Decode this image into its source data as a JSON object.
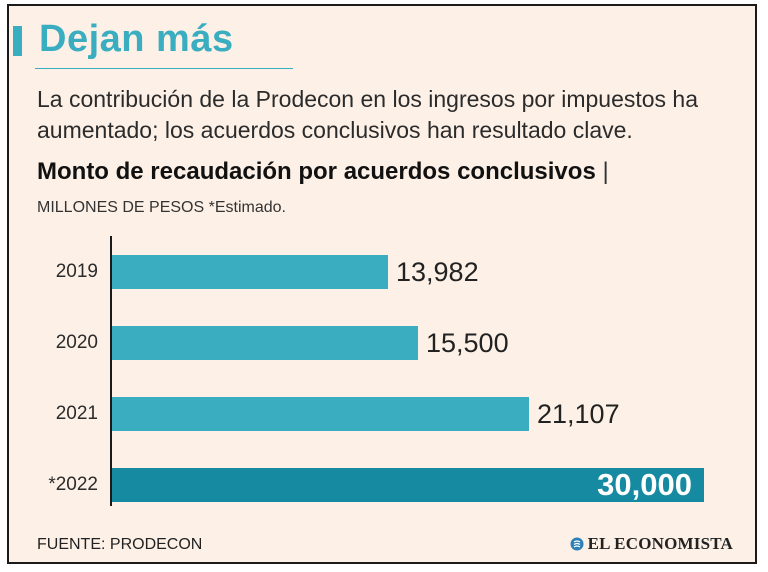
{
  "header": {
    "title": "Dejan más",
    "subtitle": "La contribución de la Prodecon en los ingresos por impuestos ha aumentado; los acuerdos conclusivos han resultado clave."
  },
  "chart_data": {
    "type": "bar",
    "orientation": "horizontal",
    "title": "Monto de recaudación por acuerdos conclusivos",
    "title_separator": "|",
    "units_note": "MILLONES DE PESOS *Estimado.",
    "categories": [
      "2019",
      "2020",
      "2021",
      "*2022"
    ],
    "values": [
      13982,
      15500,
      21107,
      30000
    ],
    "value_labels": [
      "13,982",
      "15,500",
      "21,107",
      "30,000"
    ],
    "highlight_index": 3,
    "xlim": [
      0,
      30000
    ],
    "grid": false,
    "colors": {
      "bar": "#3aaec0",
      "highlight": "#168aa0"
    }
  },
  "footer": {
    "source": "FUENTE: PRODECON",
    "brand": "EL ECONOMISTA",
    "brand_icon": "el-economista-logo-icon"
  },
  "colors": {
    "accent": "#3aaec0",
    "background": "#fdf1e7"
  }
}
